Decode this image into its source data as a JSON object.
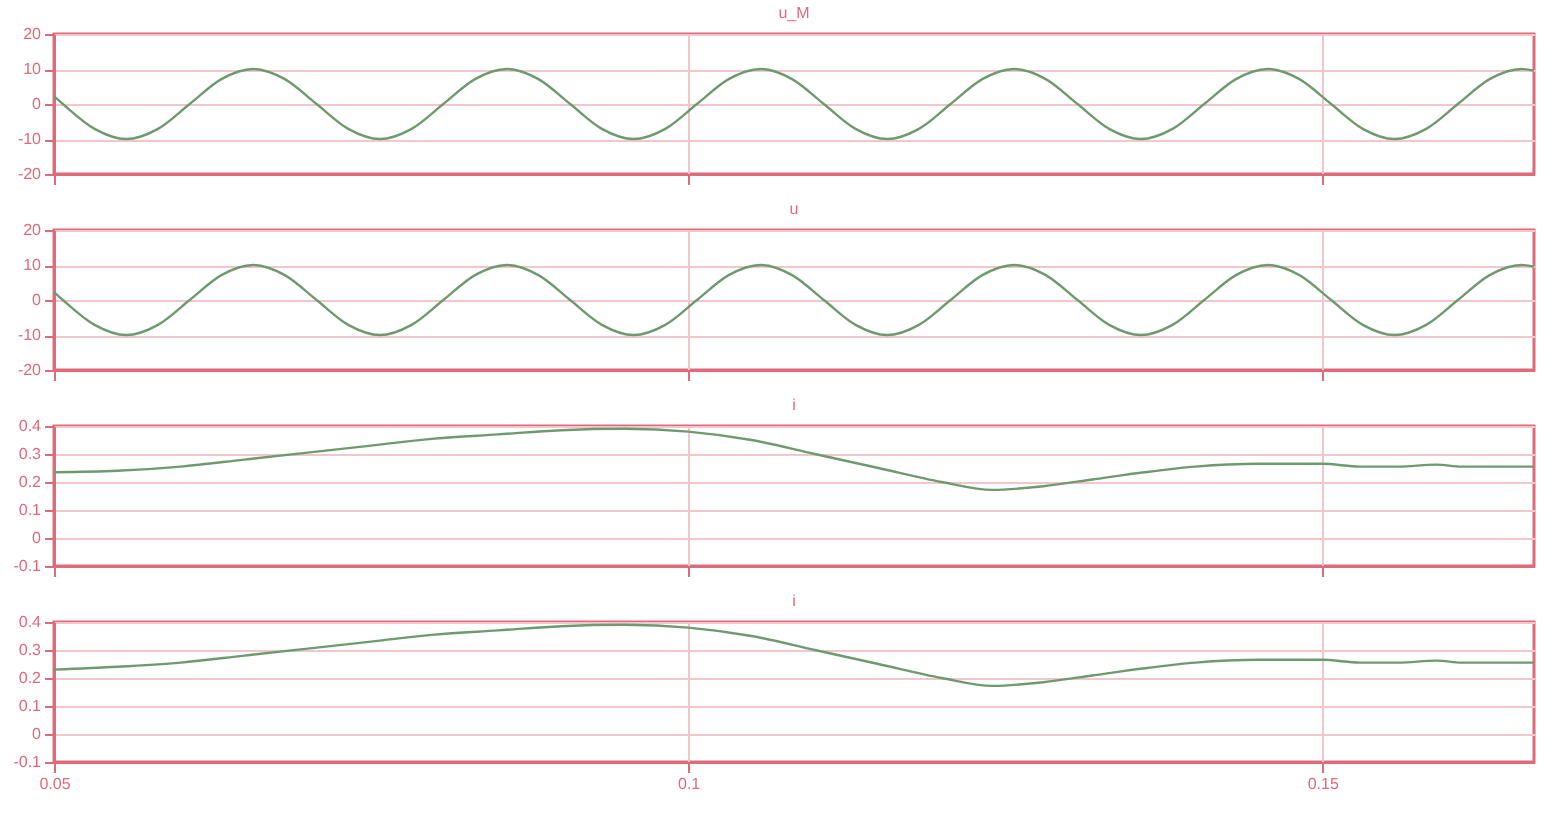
{
  "chart_data": [
    {
      "type": "line",
      "title": "u_M",
      "xlim": [
        0.05,
        0.1667
      ],
      "xticks": [
        0.05,
        0.1,
        0.15
      ],
      "ylim": [
        -20,
        20
      ],
      "yticks": [
        -20,
        -10,
        0,
        10,
        20
      ],
      "grid": true,
      "tick_labels": "y",
      "series": [
        {
          "color": "#6f9a6f",
          "x": [
            0.05,
            0.0507,
            0.0532,
            0.0557,
            0.0582,
            0.0607,
            0.0632,
            0.0657,
            0.0682,
            0.0707,
            0.0732,
            0.0757,
            0.0782,
            0.0807,
            0.0832,
            0.0857,
            0.0882,
            0.0907,
            0.0932,
            0.0957,
            0.0982,
            0.1007,
            0.1032,
            0.1057,
            0.1082,
            0.1107,
            0.1132,
            0.1157,
            0.1182,
            0.1207,
            0.1232,
            0.1257,
            0.1282,
            0.1307,
            0.1332,
            0.1357,
            0.1382,
            0.1407,
            0.1432,
            0.1457,
            0.1482,
            0.1507,
            0.1532,
            0.1557,
            0.1582,
            0.1607,
            0.1632,
            0.1657,
            0.1667
          ],
          "values": [
            2.2,
            0,
            -7.1,
            -10,
            -7.1,
            0,
            7.1,
            10,
            7.1,
            0,
            -7.1,
            -10,
            -7.1,
            0,
            7.1,
            10,
            7.1,
            0,
            -7.1,
            -10,
            -7.1,
            0,
            7.1,
            10,
            7.1,
            0,
            -7.1,
            -10,
            -7.1,
            0,
            7.1,
            10,
            7.1,
            0,
            -7.1,
            -10,
            -7.1,
            0,
            7.1,
            10,
            7.1,
            0,
            -7.1,
            -10,
            -7.1,
            0,
            7.1,
            10,
            9.5
          ]
        }
      ]
    },
    {
      "type": "line",
      "title": "u",
      "xlim": [
        0.05,
        0.1667
      ],
      "xticks": [
        0.05,
        0.1,
        0.15
      ],
      "ylim": [
        -20,
        20
      ],
      "yticks": [
        -20,
        -10,
        0,
        10,
        20
      ],
      "grid": true,
      "tick_labels": "y",
      "series": [
        {
          "color": "#6f9a6f",
          "x": [
            0.05,
            0.0507,
            0.0532,
            0.0557,
            0.0582,
            0.0607,
            0.0632,
            0.0657,
            0.0682,
            0.0707,
            0.0732,
            0.0757,
            0.0782,
            0.0807,
            0.0832,
            0.0857,
            0.0882,
            0.0907,
            0.0932,
            0.0957,
            0.0982,
            0.1007,
            0.1032,
            0.1057,
            0.1082,
            0.1107,
            0.1132,
            0.1157,
            0.1182,
            0.1207,
            0.1232,
            0.1257,
            0.1282,
            0.1307,
            0.1332,
            0.1357,
            0.1382,
            0.1407,
            0.1432,
            0.1457,
            0.1482,
            0.1507,
            0.1532,
            0.1557,
            0.1582,
            0.1607,
            0.1632,
            0.1657,
            0.1667
          ],
          "values": [
            2.2,
            0,
            -7.1,
            -10,
            -7.1,
            0,
            7.1,
            10,
            7.1,
            0,
            -7.1,
            -10,
            -7.1,
            0,
            7.1,
            10,
            7.1,
            0,
            -7.1,
            -10,
            -7.1,
            0,
            7.1,
            10,
            7.1,
            0,
            -7.1,
            -10,
            -7.1,
            0,
            7.1,
            10,
            7.1,
            0,
            -7.1,
            -10,
            -7.1,
            0,
            7.1,
            10,
            7.1,
            0,
            -7.1,
            -10,
            -7.1,
            0,
            7.1,
            10,
            9.5
          ]
        }
      ]
    },
    {
      "type": "line",
      "title": "i",
      "xlim": [
        0.05,
        0.1667
      ],
      "xticks": [
        0.05,
        0.1,
        0.15
      ],
      "ylim": [
        -0.1,
        0.4
      ],
      "yticks": [
        -0.1,
        0,
        0.1,
        0.2,
        0.3,
        0.4
      ],
      "grid": true,
      "tick_labels": "y",
      "series": [
        {
          "color": "#6f9a6f",
          "x": [
            0.05,
            0.055,
            0.06,
            0.065,
            0.07,
            0.075,
            0.08,
            0.085,
            0.09,
            0.095,
            0.1,
            0.105,
            0.11,
            0.115,
            0.12,
            0.124,
            0.128,
            0.132,
            0.136,
            0.14,
            0.145,
            0.15,
            0.153,
            0.156,
            0.159,
            0.161,
            0.1667
          ],
          "values": [
            0.235,
            0.24,
            0.255,
            0.28,
            0.305,
            0.33,
            0.355,
            0.37,
            0.385,
            0.39,
            0.38,
            0.35,
            0.3,
            0.25,
            0.2,
            0.172,
            0.185,
            0.21,
            0.235,
            0.255,
            0.265,
            0.265,
            0.255,
            0.255,
            0.262,
            0.255,
            0.255
          ]
        }
      ]
    },
    {
      "type": "line",
      "title": "i",
      "xlim": [
        0.05,
        0.1667
      ],
      "xticks": [
        0.05,
        0.1,
        0.15
      ],
      "ylim": [
        -0.1,
        0.4
      ],
      "yticks": [
        -0.1,
        0,
        0.1,
        0.2,
        0.3,
        0.4
      ],
      "grid": true,
      "series": [
        {
          "color": "#6f9a6f",
          "x": [
            0.05,
            0.055,
            0.06,
            0.065,
            0.07,
            0.075,
            0.08,
            0.085,
            0.09,
            0.095,
            0.1,
            0.105,
            0.11,
            0.115,
            0.12,
            0.124,
            0.128,
            0.132,
            0.136,
            0.14,
            0.145,
            0.15,
            0.153,
            0.156,
            0.159,
            0.161,
            0.1667
          ],
          "values": [
            0.23,
            0.24,
            0.255,
            0.28,
            0.305,
            0.33,
            0.355,
            0.37,
            0.385,
            0.39,
            0.38,
            0.35,
            0.3,
            0.25,
            0.2,
            0.172,
            0.185,
            0.21,
            0.235,
            0.255,
            0.265,
            0.265,
            0.255,
            0.255,
            0.262,
            0.255,
            0.255
          ]
        }
      ]
    }
  ]
}
